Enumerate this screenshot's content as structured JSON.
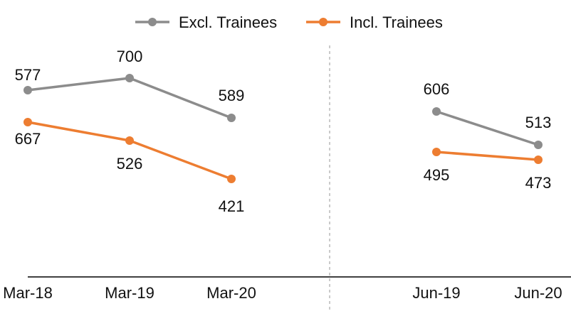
{
  "chart_data": {
    "type": "line",
    "categories": [
      "Mar-18",
      "Mar-19",
      "Mar-20",
      "Jun-19",
      "Jun-20"
    ],
    "series": [
      {
        "name": "Excl. Trainees",
        "color": "#8c8c8c",
        "values": [
          577,
          700,
          589,
          606,
          513
        ],
        "labels": [
          "577",
          "700",
          "589",
          "606",
          "513"
        ]
      },
      {
        "name": "Incl. Trainees",
        "color": "#ed7d31",
        "values": [
          667,
          526,
          421,
          495,
          473
        ],
        "labels": [
          "667",
          "526",
          "421",
          "495",
          "473"
        ]
      }
    ],
    "groups": [
      {
        "categories": [
          "Mar-18",
          "Mar-19",
          "Mar-20"
        ]
      },
      {
        "categories": [
          "Jun-19",
          "Jun-20"
        ]
      }
    ],
    "legend": "top-center",
    "grid": false,
    "axis_color": "#000000",
    "divider_color": "#a6a6a6"
  }
}
